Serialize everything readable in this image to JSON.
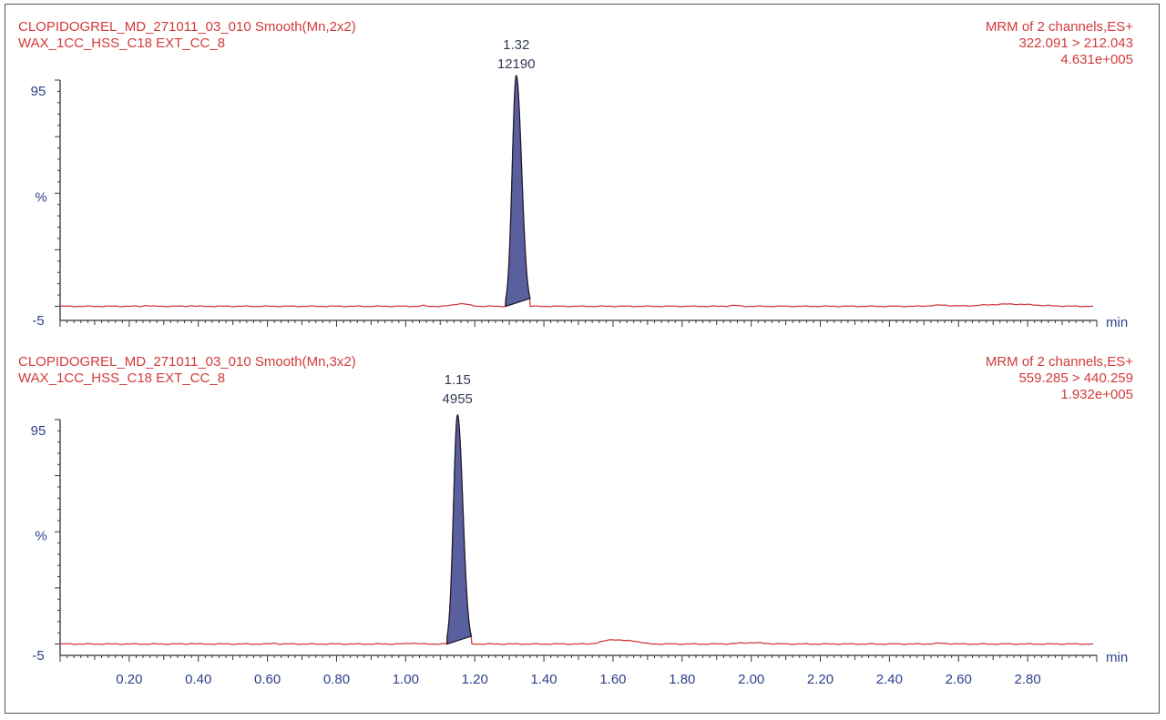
{
  "colors": {
    "header_text": "#d23a3a",
    "trace": "#d23a3a",
    "peak_fill": "#5a5f9e",
    "peak_outline": "#1a1a2e",
    "axis": "#333333",
    "axis_text": "#2e3f8a",
    "peak_label": "#333a55"
  },
  "x_axis": {
    "unit": "min",
    "range": [
      0.0,
      3.0
    ],
    "tick_labels": [
      "0.20",
      "0.40",
      "0.60",
      "0.80",
      "1.00",
      "1.20",
      "1.40",
      "1.60",
      "1.80",
      "2.00",
      "2.20",
      "2.40",
      "2.60",
      "2.80"
    ]
  },
  "chart_data": [
    {
      "type": "line",
      "header_left": [
        "CLOPIDOGREL_MD_271011_03_010 Smooth(Mn,2x2)",
        "WAX_1CC_HSS_C18 EXT_CC_8"
      ],
      "header_right": [
        "MRM of 2 channels,ES+",
        "322.091 > 212.043",
        "4.631e+005"
      ],
      "y_labels": {
        "top": "95",
        "mid": "%",
        "bottom": "-5"
      },
      "x_unit": "min",
      "xlim": [
        0.0,
        3.0
      ],
      "ylim": [
        -5,
        100
      ],
      "baseline": -5,
      "peak": {
        "rt": 1.32,
        "rt_label": "1.32",
        "area_label": "12190",
        "start": 1.29,
        "end": 1.36,
        "height": 100
      },
      "bumps": [
        {
          "x": 0.25,
          "h": 0.4,
          "w": 0.01
        },
        {
          "x": 0.38,
          "h": 0.3,
          "w": 0.01
        },
        {
          "x": 1.16,
          "h": 1.2,
          "w": 0.03
        },
        {
          "x": 1.05,
          "h": 0.3,
          "w": 0.01
        },
        {
          "x": 1.95,
          "h": 0.4,
          "w": 0.02
        },
        {
          "x": 2.55,
          "h": 0.5,
          "w": 0.04
        },
        {
          "x": 2.75,
          "h": 1.0,
          "w": 0.1
        }
      ]
    },
    {
      "type": "line",
      "header_left": [
        "CLOPIDOGREL_MD_271011_03_010 Smooth(Mn,3x2)",
        "WAX_1CC_HSS_C18 EXT_CC_8"
      ],
      "header_right": [
        "MRM of 2 channels,ES+",
        "559.285 > 440.259",
        "1.932e+005"
      ],
      "y_labels": {
        "top": "95",
        "mid": "%",
        "bottom": "-5"
      },
      "x_unit": "min",
      "xlim": [
        0.0,
        3.0
      ],
      "ylim": [
        -5,
        100
      ],
      "baseline": -5,
      "peak": {
        "rt": 1.15,
        "rt_label": "1.15",
        "area_label": "4955",
        "start": 1.12,
        "end": 1.19,
        "height": 100
      },
      "bumps": [
        {
          "x": 0.38,
          "h": 0.3,
          "w": 0.01
        },
        {
          "x": 0.62,
          "h": 0.4,
          "w": 0.01
        },
        {
          "x": 1.02,
          "h": 0.4,
          "w": 0.02
        },
        {
          "x": 1.6,
          "h": 2.0,
          "w": 0.04
        },
        {
          "x": 1.66,
          "h": 1.2,
          "w": 0.03
        },
        {
          "x": 2.0,
          "h": 0.6,
          "w": 0.05
        },
        {
          "x": 2.55,
          "h": 0.3,
          "w": 0.03
        }
      ]
    }
  ]
}
